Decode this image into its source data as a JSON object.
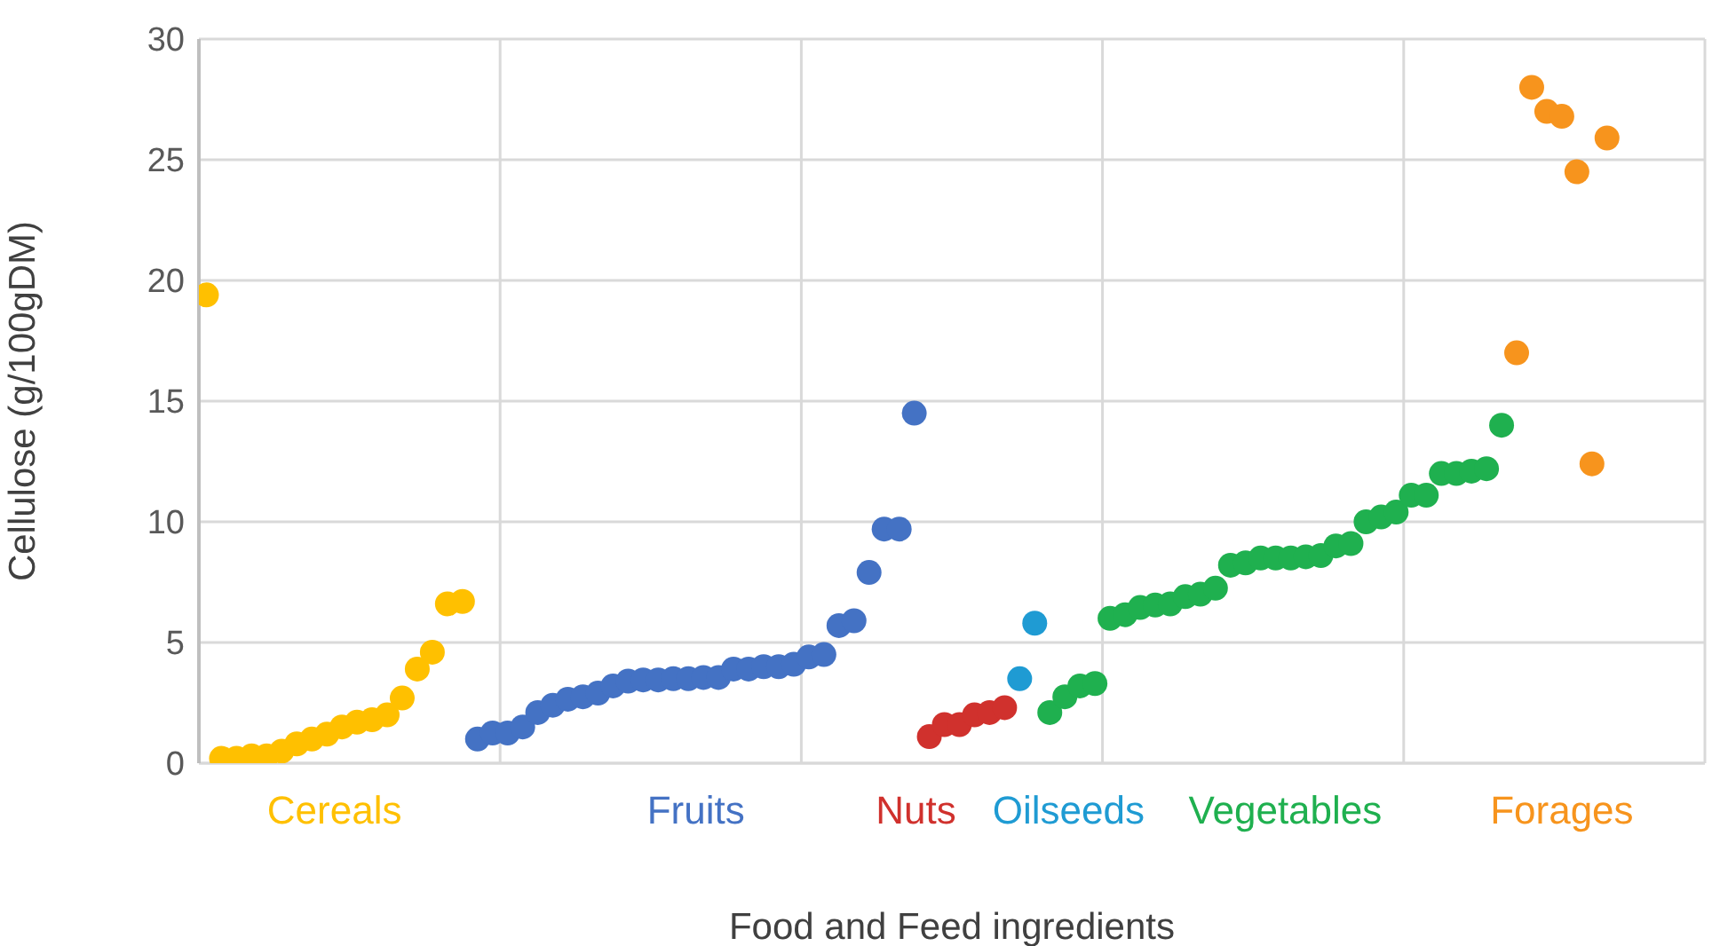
{
  "chart_data": {
    "type": "scatter",
    "xlabel": "Food and Feed ingredients",
    "ylabel": "Cellulose (g/100gDM)",
    "categories": [
      null,
      null,
      null,
      null,
      null,
      null,
      null,
      null,
      null,
      null,
      null,
      null,
      null,
      null,
      null,
      null,
      null,
      null,
      null,
      null,
      null,
      null,
      null,
      null,
      null,
      null,
      null,
      null,
      null,
      null,
      null,
      null,
      null,
      null,
      null,
      null,
      null,
      null,
      null,
      null,
      null,
      null,
      null,
      null,
      null,
      null,
      null,
      null,
      null,
      null,
      null,
      null,
      null,
      null,
      null,
      null,
      null,
      null,
      null,
      null,
      null,
      null,
      null,
      null,
      null,
      null,
      null,
      null,
      null,
      null,
      null,
      null,
      null,
      null,
      null,
      null,
      null,
      null,
      null,
      null,
      null,
      null,
      null,
      null,
      null,
      null,
      null,
      null,
      null,
      null,
      null,
      null,
      null,
      null,
      null,
      null,
      null,
      null,
      null,
      null
    ],
    "ylim": [
      0,
      30
    ],
    "yticks": [
      0,
      5,
      10,
      15,
      20,
      25,
      30
    ],
    "grid": true,
    "marker": "circle",
    "legend": "bottom",
    "series": [
      {
        "name": "Cereals",
        "color": "#ffc000",
        "values": [
          19.4,
          0.2,
          0.2,
          0.3,
          0.3,
          0.5,
          0.8,
          1.0,
          1.2,
          1.5,
          1.7,
          1.8,
          2.0,
          2.7,
          3.9,
          4.6,
          6.6,
          6.7,
          null,
          null,
          null,
          null,
          null,
          null,
          null,
          null,
          null,
          null,
          null,
          null,
          null,
          null,
          null,
          null,
          null,
          null,
          null,
          null,
          null,
          null,
          null,
          null,
          null,
          null,
          null,
          null,
          null,
          null,
          null,
          null,
          null,
          null,
          null,
          null,
          null,
          null,
          null,
          null,
          null,
          null,
          null,
          null,
          null,
          null,
          null,
          null,
          null,
          null,
          null,
          null,
          null,
          null,
          null,
          null,
          null,
          null,
          null,
          null,
          null,
          null,
          null,
          null,
          null,
          null,
          null,
          null,
          null,
          null,
          null,
          null,
          null,
          null,
          null,
          null,
          null,
          null,
          null,
          null,
          null,
          null
        ]
      },
      {
        "name": "Fruits",
        "color": "#4472c4",
        "values": [
          null,
          null,
          null,
          null,
          null,
          null,
          null,
          null,
          null,
          null,
          null,
          null,
          null,
          null,
          null,
          null,
          null,
          null,
          1.0,
          1.25,
          1.25,
          1.5,
          2.1,
          2.4,
          2.65,
          2.75,
          2.9,
          3.2,
          3.4,
          3.45,
          3.45,
          3.5,
          3.5,
          3.55,
          3.55,
          3.9,
          3.9,
          4.0,
          4.0,
          4.1,
          4.4,
          4.5,
          5.7,
          5.9,
          7.9,
          9.7,
          9.7,
          14.5,
          null,
          null,
          null,
          null,
          null,
          null,
          null,
          null,
          null,
          null,
          null,
          null,
          null,
          null,
          null,
          null,
          null,
          null,
          null,
          null,
          null,
          null,
          null,
          null,
          null,
          null,
          null,
          null,
          null,
          null,
          null,
          null,
          null,
          null,
          null,
          null,
          null,
          null,
          null,
          null,
          null,
          null,
          null,
          null,
          null,
          null,
          null,
          null,
          null,
          null,
          null,
          null
        ]
      },
      {
        "name": "Nuts",
        "color": "#d0312d",
        "values": [
          null,
          null,
          null,
          null,
          null,
          null,
          null,
          null,
          null,
          null,
          null,
          null,
          null,
          null,
          null,
          null,
          null,
          null,
          null,
          null,
          null,
          null,
          null,
          null,
          null,
          null,
          null,
          null,
          null,
          null,
          null,
          null,
          null,
          null,
          null,
          null,
          null,
          null,
          null,
          null,
          null,
          null,
          null,
          null,
          null,
          null,
          null,
          null,
          1.1,
          1.6,
          1.6,
          2.0,
          2.1,
          2.3,
          null,
          null,
          null,
          null,
          null,
          null,
          null,
          null,
          null,
          null,
          null,
          null,
          null,
          null,
          null,
          null,
          null,
          null,
          null,
          null,
          null,
          null,
          null,
          null,
          null,
          null,
          null,
          null,
          null,
          null,
          null,
          null,
          null,
          null,
          null,
          null,
          null,
          null,
          null,
          null,
          null,
          null,
          null,
          null,
          null,
          null
        ]
      },
      {
        "name": "Oilseeds",
        "color": "#1f9bd3",
        "values": [
          null,
          null,
          null,
          null,
          null,
          null,
          null,
          null,
          null,
          null,
          null,
          null,
          null,
          null,
          null,
          null,
          null,
          null,
          null,
          null,
          null,
          null,
          null,
          null,
          null,
          null,
          null,
          null,
          null,
          null,
          null,
          null,
          null,
          null,
          null,
          null,
          null,
          null,
          null,
          null,
          null,
          null,
          null,
          null,
          null,
          null,
          null,
          null,
          null,
          null,
          null,
          null,
          null,
          null,
          3.5,
          5.8,
          null,
          null,
          null,
          null,
          null,
          null,
          null,
          null,
          null,
          null,
          null,
          null,
          null,
          null,
          null,
          null,
          null,
          null,
          null,
          null,
          null,
          null,
          null,
          null,
          null,
          null,
          null,
          null,
          null,
          null,
          null,
          null,
          null,
          null,
          null,
          null,
          null,
          null,
          null,
          null,
          null,
          null,
          null,
          null
        ]
      },
      {
        "name": "Vegetables",
        "color": "#1fb04f",
        "values": [
          null,
          null,
          null,
          null,
          null,
          null,
          null,
          null,
          null,
          null,
          null,
          null,
          null,
          null,
          null,
          null,
          null,
          null,
          null,
          null,
          null,
          null,
          null,
          null,
          null,
          null,
          null,
          null,
          null,
          null,
          null,
          null,
          null,
          null,
          null,
          null,
          null,
          null,
          null,
          null,
          null,
          null,
          null,
          null,
          null,
          null,
          null,
          null,
          null,
          null,
          null,
          null,
          null,
          null,
          null,
          null,
          2.1,
          2.75,
          3.2,
          3.3,
          6.0,
          6.15,
          6.45,
          6.55,
          6.6,
          6.9,
          7.0,
          7.25,
          8.2,
          8.3,
          8.5,
          8.5,
          8.5,
          8.55,
          8.6,
          9.0,
          9.1,
          10.0,
          10.2,
          10.4,
          11.1,
          11.1,
          12.0,
          12.0,
          12.1,
          12.2,
          14.0,
          null,
          null,
          null,
          null,
          null,
          null,
          null,
          null,
          null,
          null,
          null,
          null,
          null
        ]
      },
      {
        "name": "Forages",
        "color": "#f7941d",
        "values": [
          null,
          null,
          null,
          null,
          null,
          null,
          null,
          null,
          null,
          null,
          null,
          null,
          null,
          null,
          null,
          null,
          null,
          null,
          null,
          null,
          null,
          null,
          null,
          null,
          null,
          null,
          null,
          null,
          null,
          null,
          null,
          null,
          null,
          null,
          null,
          null,
          null,
          null,
          null,
          null,
          null,
          null,
          null,
          null,
          null,
          null,
          null,
          null,
          null,
          null,
          null,
          null,
          null,
          null,
          null,
          null,
          null,
          null,
          null,
          null,
          null,
          null,
          null,
          null,
          null,
          null,
          null,
          null,
          null,
          null,
          null,
          null,
          null,
          null,
          null,
          null,
          null,
          null,
          null,
          null,
          null,
          null,
          null,
          null,
          null,
          null,
          null,
          17.0,
          28.0,
          27.0,
          26.8,
          24.5,
          12.4,
          25.9,
          null,
          null,
          null,
          null,
          null,
          null
        ]
      }
    ]
  }
}
